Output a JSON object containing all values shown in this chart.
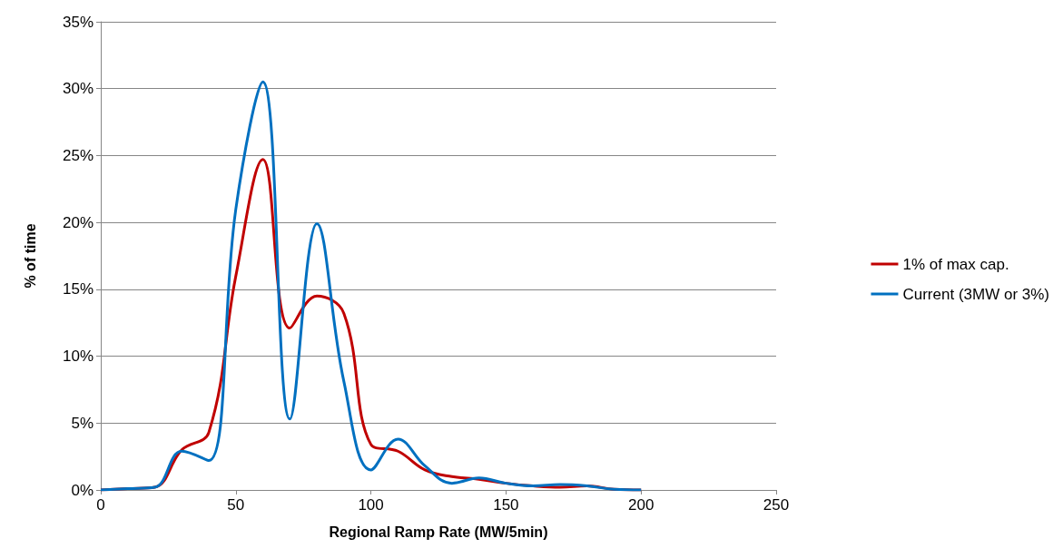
{
  "chart_data": {
    "type": "line",
    "xlabel": "Regional Ramp Rate (MW/5min)",
    "ylabel": "% of time",
    "x": [
      0,
      10,
      20,
      30,
      40,
      50,
      60,
      70,
      80,
      90,
      100,
      110,
      120,
      130,
      140,
      150,
      160,
      170,
      180,
      190,
      200
    ],
    "series": [
      {
        "name": "1% of max cap.",
        "color": "#c00000",
        "values": [
          0,
          0.1,
          0.2,
          3.0,
          4.3,
          16,
          24.7,
          12.1,
          14.5,
          13.2,
          3.4,
          2.9,
          1.5,
          1.0,
          0.8,
          0.5,
          0.3,
          0.2,
          0.3,
          0.05,
          0
        ]
      },
      {
        "name": "Current (3MW or 3%)",
        "color": "#0070c0",
        "values": [
          0,
          0.1,
          0.2,
          2.9,
          2.2,
          21,
          30.5,
          5.3,
          19.9,
          8.1,
          1.5,
          3.8,
          1.8,
          0.5,
          0.9,
          0.5,
          0.3,
          0.4,
          0.3,
          0.05,
          0
        ]
      }
    ],
    "xlim": [
      0,
      250
    ],
    "xticks": [
      0,
      50,
      100,
      150,
      200,
      250
    ],
    "ylim": [
      0,
      35
    ],
    "yticks": [
      {
        "value": 0,
        "label": "0%"
      },
      {
        "value": 5,
        "label": "5%"
      },
      {
        "value": 10,
        "label": "10%"
      },
      {
        "value": 15,
        "label": "15%"
      },
      {
        "value": 20,
        "label": "20%"
      },
      {
        "value": 25,
        "label": "25%"
      },
      {
        "value": 30,
        "label": "30%"
      },
      {
        "value": 35,
        "label": "35%"
      }
    ],
    "grid": "y",
    "legend": "right",
    "marker": "none",
    "line_style": "solid"
  }
}
